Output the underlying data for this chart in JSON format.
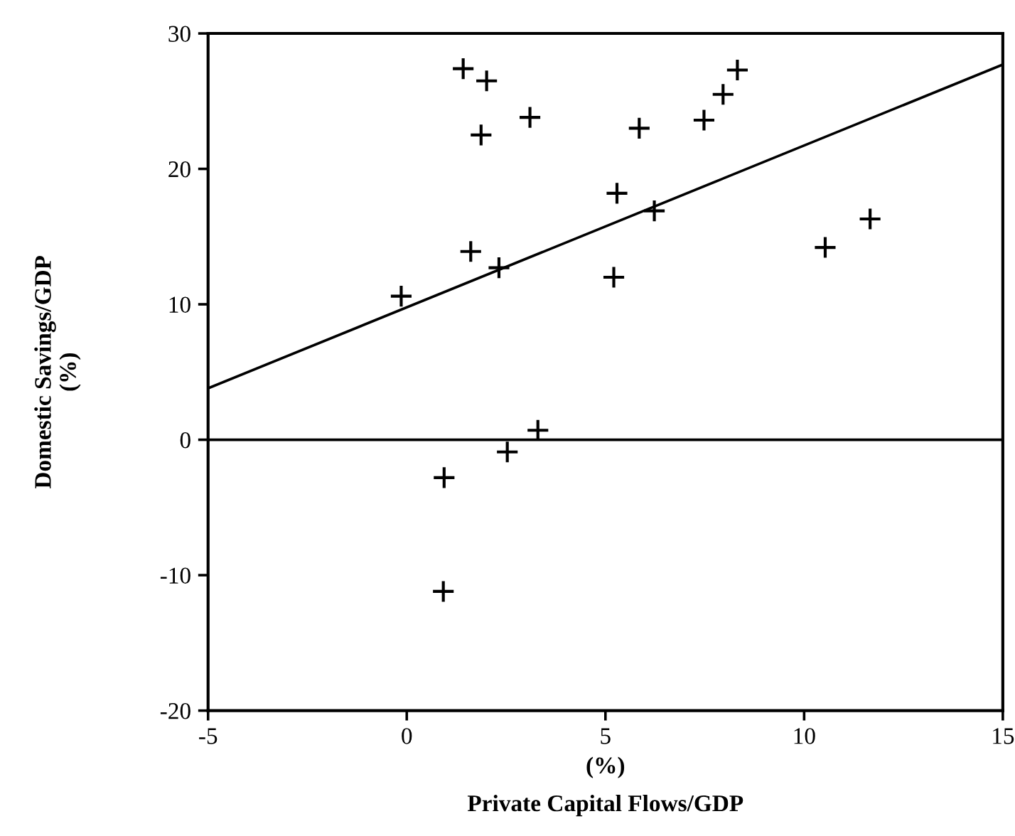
{
  "chart_data": {
    "type": "scatter",
    "xlabel": "(%)\nPrivate Capital Flows/GDP",
    "ylabel": "Domestic Savings/GDP\n(%)",
    "xlim": [
      -5,
      15
    ],
    "xticks": [
      -5,
      0,
      5,
      10,
      15
    ],
    "ylim": [
      -20,
      30
    ],
    "yticks": [
      -20,
      -10,
      0,
      10,
      20,
      30
    ],
    "grid": false,
    "legend": false,
    "series": [
      {
        "marker": "cross",
        "color": "#000000",
        "x": [
          1.42,
          2.01,
          1.87,
          3.1,
          5.85,
          7.48,
          7.96,
          8.32,
          5.29,
          6.23,
          11.66,
          10.53,
          1.61,
          2.32,
          5.21,
          -0.14,
          3.3,
          2.53,
          0.94,
          0.92
        ],
        "values": [
          27.4,
          26.5,
          22.5,
          23.8,
          23.0,
          23.6,
          25.5,
          27.3,
          18.2,
          16.9,
          16.3,
          14.2,
          13.9,
          12.7,
          12.0,
          10.6,
          0.7,
          -0.9,
          -2.8,
          -11.2
        ]
      },
      {
        "type": "line",
        "color": "#000000",
        "x": [
          -5,
          15
        ],
        "values": [
          3.8,
          27.7
        ]
      }
    ],
    "ref_lines": [
      {
        "axis": "y",
        "value": 0,
        "color": "#000000"
      }
    ]
  }
}
